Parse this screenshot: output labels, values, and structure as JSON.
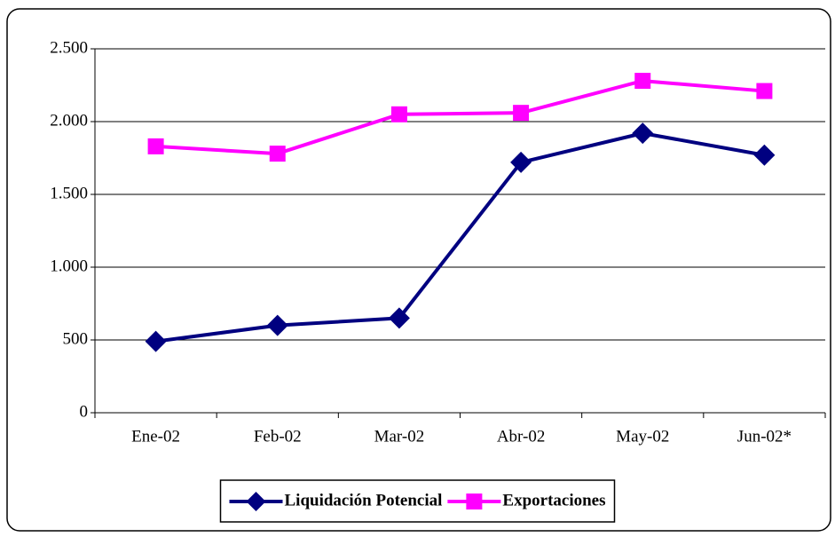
{
  "chart_data": {
    "type": "line",
    "categories": [
      "Ene-02",
      "Feb-02",
      "Mar-02",
      "Abr-02",
      "May-02",
      "Jun-02*"
    ],
    "series": [
      {
        "name": "Liquidación Potencial",
        "color": "#000080",
        "marker": "diamond",
        "values": [
          490,
          600,
          650,
          1720,
          1920,
          1770
        ]
      },
      {
        "name": "Exportaciones",
        "color": "#ff00ff",
        "marker": "square",
        "values": [
          1830,
          1780,
          2050,
          2060,
          2280,
          2210
        ]
      }
    ],
    "ylim": [
      0,
      2500
    ],
    "yticks": [
      0,
      500,
      {
        "value": 1000,
        "label": "1.000"
      },
      {
        "value": 1500,
        "label": "1.500"
      },
      {
        "value": 2000,
        "label": "2.000"
      },
      {
        "value": 2500,
        "label": "2.500"
      }
    ],
    "grid": true,
    "legend": "bottom"
  }
}
